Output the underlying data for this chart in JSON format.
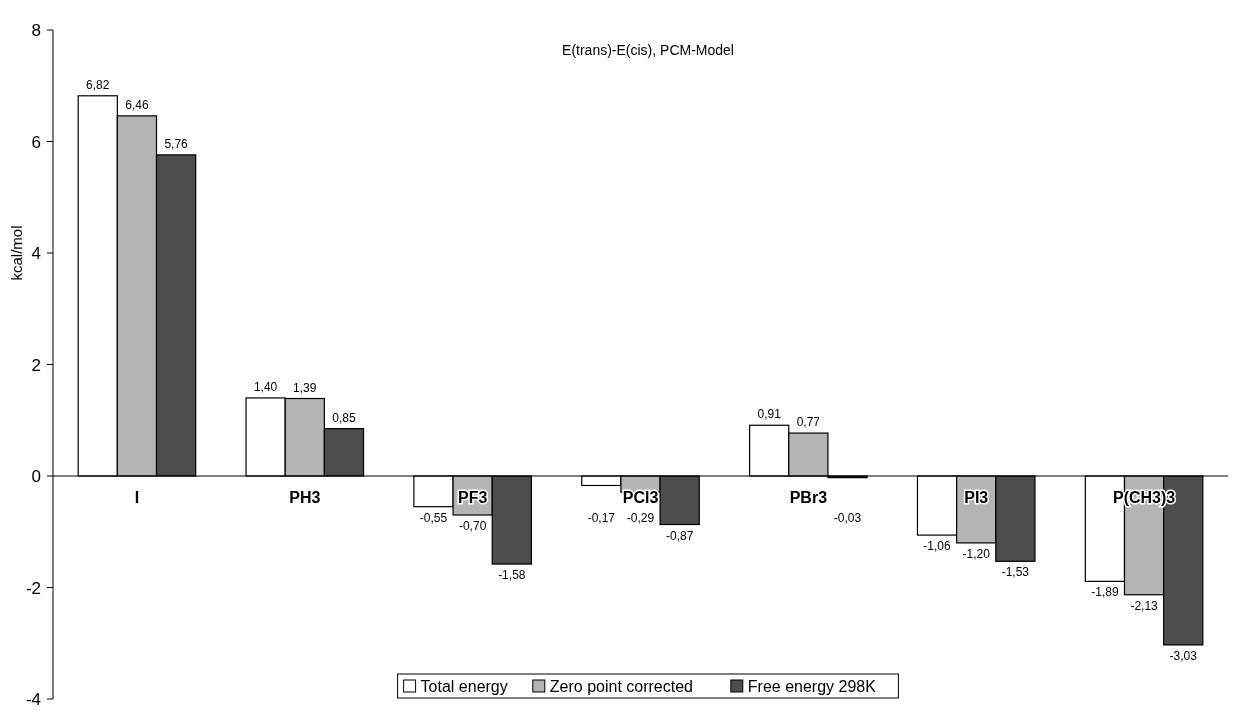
{
  "chart_data": {
    "type": "bar",
    "title": "E(trans)-E(cis), PCM-Model",
    "ylabel": "kcal/mol",
    "categories": [
      "I",
      "PH3",
      "PF3",
      "PCl3",
      "PBr3",
      "PI3",
      "P(CH3)3"
    ],
    "series": [
      {
        "name": "Total energy",
        "color": "#ffffff",
        "values": [
          6.82,
          1.4,
          -0.55,
          -0.17,
          0.91,
          -1.06,
          -1.89
        ],
        "value_labels": [
          "6,82",
          "1,40",
          "-0,55",
          "-0,17",
          "0,91",
          "-1,06",
          "-1,89"
        ]
      },
      {
        "name": "Zero point corrected",
        "color": "#b4b4b4",
        "values": [
          6.46,
          1.39,
          -0.7,
          -0.29,
          0.77,
          -1.2,
          -2.13
        ],
        "value_labels": [
          "6,46",
          "1,39",
          "-0,70",
          "-0,29",
          "0,77",
          "-1,20",
          "-2,13"
        ]
      },
      {
        "name": "Free energy 298K",
        "color": "#4d4d4d",
        "values": [
          5.76,
          0.85,
          -1.58,
          -0.87,
          -0.03,
          -1.53,
          -3.03
        ],
        "value_labels": [
          "5,76",
          "0,85",
          "-1,58",
          "-0,87",
          "-0,03",
          "-1,53",
          "-3,03"
        ]
      }
    ],
    "ylim": [
      -4,
      8
    ],
    "yticks": [
      -4,
      -2,
      0,
      2,
      4,
      6,
      8
    ],
    "legend": "bottom",
    "grid": false
  }
}
